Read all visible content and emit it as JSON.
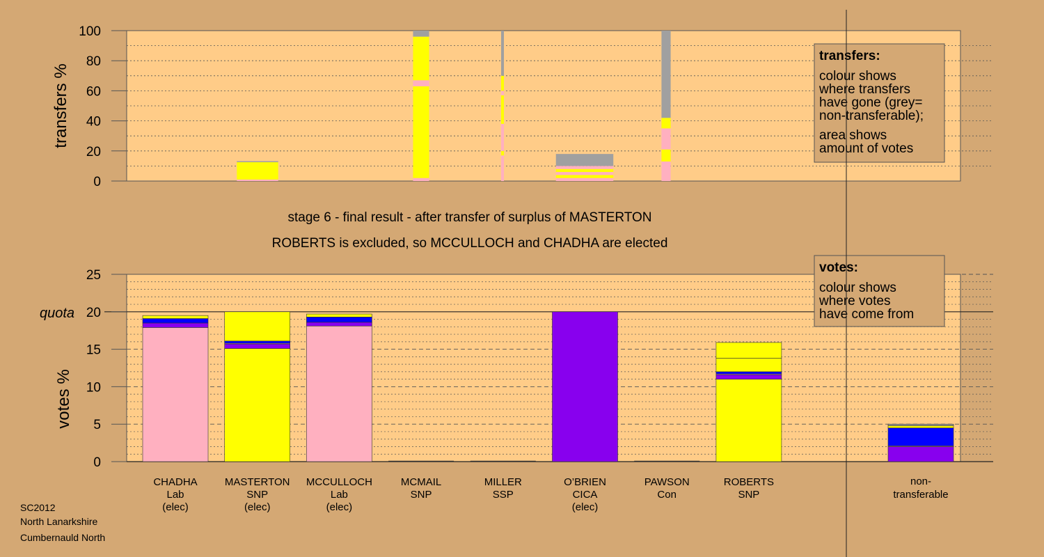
{
  "chart_data": [
    {
      "type": "bar",
      "name": "transfers",
      "ylabel": "transfers %",
      "ylim": [
        0,
        100
      ],
      "yticks": [
        "0",
        "20",
        "40",
        "60",
        "80",
        "100"
      ],
      "grid": true,
      "legend_title": "transfers:",
      "legend_lines": [
        "colour shows",
        "where transfers",
        "have gone (grey=",
        "non-transferable);",
        "area shows",
        "amount of votes"
      ],
      "legend_placement": "top-right",
      "columns": [
        {
          "candidate": "MASTERTON",
          "width_frac": 0.18,
          "segments": [
            {
              "color": "#ffb0c0",
              "from": 0,
              "to": 1
            },
            {
              "color": "#ffff00",
              "from": 1,
              "to": 12.5
            },
            {
              "color": "#a0a0a0",
              "from": 12.5,
              "to": 13.2
            }
          ]
        },
        {
          "candidate": "OBRIEN",
          "width_frac": 0.07,
          "segments": [
            {
              "color": "#ffb0c0",
              "from": 0,
              "to": 2
            },
            {
              "color": "#ffff00",
              "from": 2,
              "to": 63
            },
            {
              "color": "#ffb0c0",
              "from": 63,
              "to": 67
            },
            {
              "color": "#ffff00",
              "from": 67,
              "to": 96
            },
            {
              "color": "#a0a0a0",
              "from": 96,
              "to": 100
            }
          ]
        },
        {
          "candidate": "PAWSON",
          "width_frac": 0.012,
          "segments": [
            {
              "color": "#ffb0c0",
              "from": 0,
              "to": 17
            },
            {
              "color": "#ffff00",
              "from": 17,
              "to": 20
            },
            {
              "color": "#ffb0c0",
              "from": 20,
              "to": 38
            },
            {
              "color": "#ffff00",
              "from": 38,
              "to": 57
            },
            {
              "color": "#ffb0c0",
              "from": 57,
              "to": 60
            },
            {
              "color": "#ffff00",
              "from": 60,
              "to": 70
            },
            {
              "color": "#a0a0a0",
              "from": 70,
              "to": 100
            }
          ]
        },
        {
          "candidate": "ROBERTS",
          "width_frac": 0.25,
          "segments": [
            {
              "color": "#ffb0c0",
              "from": 0,
              "to": 2
            },
            {
              "color": "#ffff00",
              "from": 2,
              "to": 4
            },
            {
              "color": "#ffb0c0",
              "from": 4,
              "to": 6
            },
            {
              "color": "#ffff00",
              "from": 6,
              "to": 8
            },
            {
              "color": "#ffb0c0",
              "from": 8,
              "to": 10
            },
            {
              "color": "#a0a0a0",
              "from": 10,
              "to": 18
            }
          ]
        },
        {
          "candidate": "MCMAIL",
          "width_frac": 0.04,
          "segments": [
            {
              "color": "#ffb0c0",
              "from": 0,
              "to": 13
            },
            {
              "color": "#ffff00",
              "from": 13,
              "to": 21
            },
            {
              "color": "#ffb0c0",
              "from": 21,
              "to": 35
            },
            {
              "color": "#ffff00",
              "from": 35,
              "to": 42
            },
            {
              "color": "#a0a0a0",
              "from": 42,
              "to": 100
            }
          ]
        }
      ]
    },
    {
      "type": "bar",
      "name": "votes",
      "ylabel": "votes %",
      "ylim": [
        0,
        25
      ],
      "yticks": [
        "0",
        "5",
        "10",
        "15",
        "20",
        "25"
      ],
      "quota_label": "quota",
      "quota": 20,
      "grid": true,
      "legend_title": "votes:",
      "legend_lines": [
        "colour shows",
        "where votes",
        "have come from"
      ],
      "legend_placement": "top-right",
      "categories": [
        {
          "name": "CHADHA",
          "party": "Lab",
          "note": "(elec)",
          "segments": [
            {
              "color": "#ffb0c0",
              "value": 17.9
            },
            {
              "color": "#8800ee",
              "value": 0.6
            },
            {
              "color": "#0000ff",
              "value": 0.6
            },
            {
              "color": "#ffff00",
              "value": 0.4
            }
          ]
        },
        {
          "name": "MASTERTON",
          "party": "SNP",
          "note": "(elec)",
          "segments": [
            {
              "color": "#ffff00",
              "value": 15.1
            },
            {
              "color": "#8800ee",
              "value": 0.6
            },
            {
              "color": "#ffb0c0",
              "value": 0.1
            },
            {
              "color": "#0000ff",
              "value": 0.3
            },
            {
              "color": "#ffff00",
              "value": 3.9
            }
          ]
        },
        {
          "name": "MCCULLOCH",
          "party": "Lab",
          "note": "(elec)",
          "segments": [
            {
              "color": "#ffb0c0",
              "value": 18.1
            },
            {
              "color": "#8800ee",
              "value": 0.5
            },
            {
              "color": "#0000ff",
              "value": 0.7
            },
            {
              "color": "#ffff00",
              "value": 0.4
            }
          ]
        },
        {
          "name": "MCMAIL",
          "party": "SNP",
          "note": "",
          "segments": []
        },
        {
          "name": "MILLER",
          "party": "SSP",
          "note": "",
          "segments": []
        },
        {
          "name": "O’BRIEN",
          "party": "CICA",
          "note": "(elec)",
          "segments": [
            {
              "color": "#8800ee",
              "value": 20
            }
          ]
        },
        {
          "name": "PAWSON",
          "party": "Con",
          "note": "",
          "segments": []
        },
        {
          "name": "ROBERTS",
          "party": "SNP",
          "note": "",
          "segments": [
            {
              "color": "#ffff00",
              "value": 11
            },
            {
              "color": "#8800ee",
              "value": 0.6
            },
            {
              "color": "#ffb0c0",
              "value": 0.1
            },
            {
              "color": "#0000ff",
              "value": 0.3
            },
            {
              "color": "#ffff00",
              "value": 1.8
            },
            {
              "color": "#ffff00",
              "value": 2.1
            }
          ]
        }
      ],
      "nontransferable": {
        "label_line1": "non-",
        "label_line2": "transferable",
        "segments": [
          {
            "color": "#8800ee",
            "value": 2.0
          },
          {
            "color": "#ffb0c0",
            "value": 0.1
          },
          {
            "color": "#0000ff",
            "value": 2.4
          },
          {
            "color": "#ffff00",
            "value": 0.3
          },
          {
            "color": "#a0a0a0",
            "value": 0.2
          }
        ]
      }
    }
  ],
  "headings": {
    "line1": "stage 6 - final result - after transfer of surplus of MASTERTON",
    "line2": "ROBERTS is excluded, so MCCULLOCH and CHADHA are elected"
  },
  "footer": {
    "line1": "SC2012",
    "line2": "North Lanarkshire",
    "line3": "Cumbernauld North"
  },
  "colors": {
    "background": "#d4a874",
    "plot": "#ffcc88",
    "legend_box": "#d4a874"
  }
}
